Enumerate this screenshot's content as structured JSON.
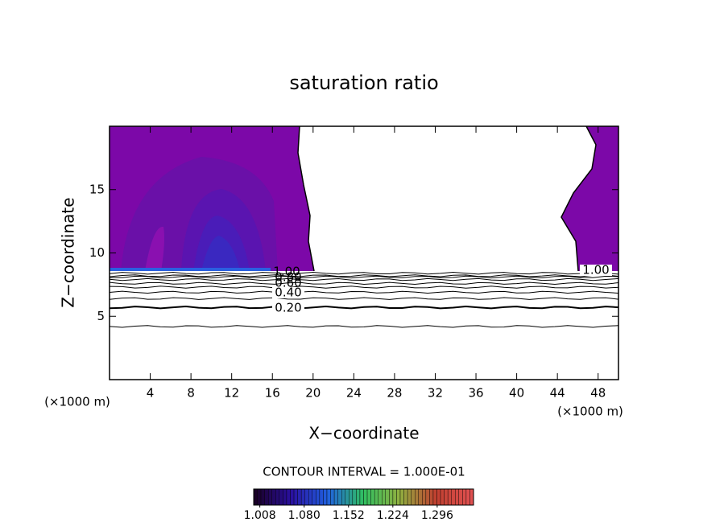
{
  "chart_data": {
    "type": "contour",
    "title": "saturation ratio",
    "x_label": "X−coordinate",
    "y_label": "Z−coordinate",
    "x_unit_label": "(×1000 m)",
    "xlim": [
      0,
      50
    ],
    "xticks": [
      4,
      8,
      12,
      16,
      20,
      24,
      28,
      32,
      36,
      40,
      44,
      48
    ],
    "ylim": [
      0,
      20
    ],
    "yticks": [
      5,
      10,
      15
    ],
    "contour_levels": [
      0.1,
      0.2,
      0.3,
      0.4,
      0.5,
      0.6,
      0.7,
      0.8,
      0.9,
      1
    ],
    "contour_z": [
      4.2,
      5.7,
      6.4,
      6.9,
      7.3,
      7.6,
      7.9,
      8.1,
      8.2,
      8.4
    ],
    "contour_labels": [
      {
        "value": 1,
        "label": "1.00"
      },
      {
        "value": 0.8,
        "label": "0.80"
      },
      {
        "value": 0.6,
        "label": "0.60"
      },
      {
        "value": 0.4,
        "label": "0.40"
      },
      {
        "value": 0.2,
        "label": "0.20"
      },
      {
        "value": 1,
        "label": "1.00"
      }
    ],
    "interval_label": "CONTOUR INTERVAL = 1.000E-01",
    "colorbar": {
      "lim": [
        0.998,
        1.355
      ],
      "ticks": [
        1.008,
        {
          "value": 1.08,
          "label": "1.080"
        },
        1.152,
        1.224,
        1.296
      ],
      "colors": [
        "#1a0028",
        "#2a10a0",
        "#2060e0",
        "#30c060",
        "#90b040",
        "#c04030",
        "#e05050"
      ]
    }
  }
}
